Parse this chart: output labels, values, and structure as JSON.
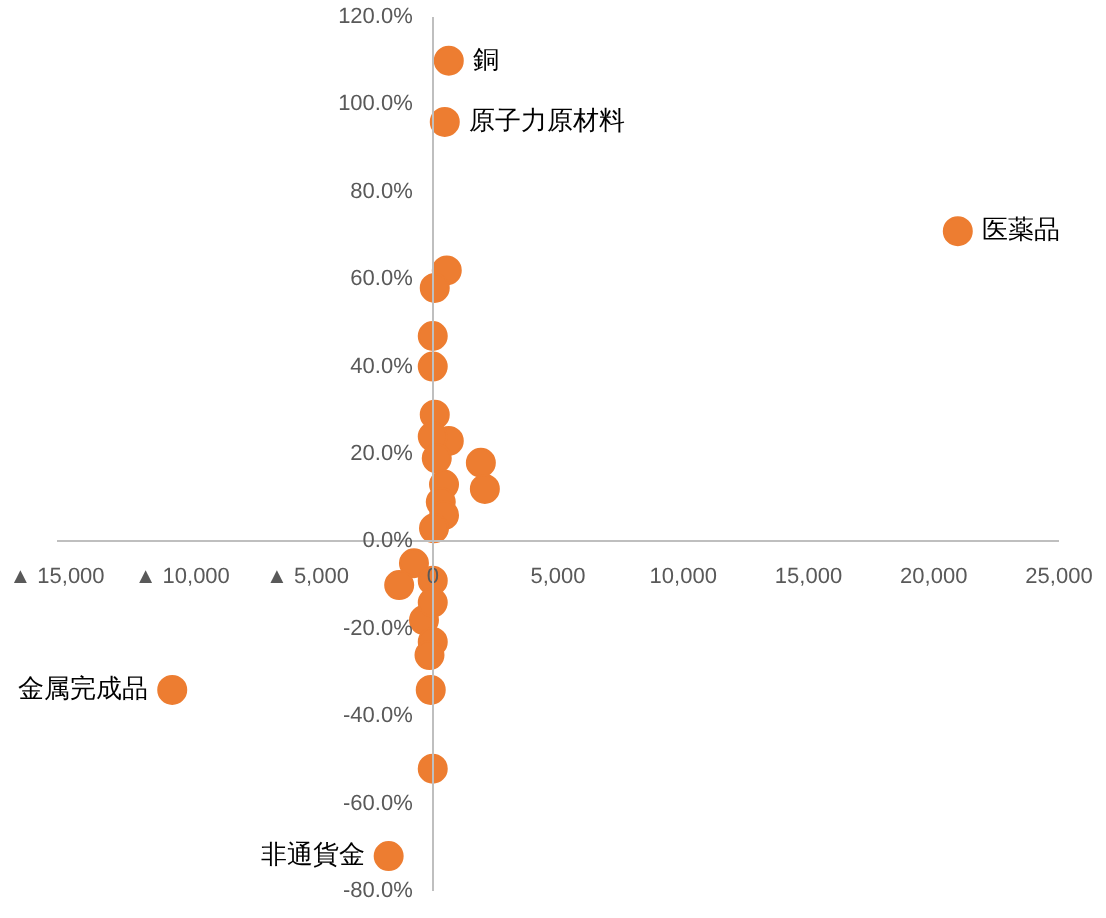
{
  "chart_data": {
    "type": "scatter",
    "color": "#ed7d31",
    "marker": "circle",
    "grid": false,
    "x": [
      640,
      480,
      20960,
      -10400,
      -1760,
      560,
      80,
      0,
      0,
      80,
      640,
      1920,
      2080,
      0,
      160,
      450,
      320,
      450,
      50,
      -750,
      -1340,
      -350,
      0,
      -130,
      -80,
      0,
      0,
      0
    ],
    "values": [
      110,
      96,
      71,
      -34,
      -72,
      62,
      58,
      47,
      40,
      29,
      23,
      18,
      12,
      24,
      19,
      13,
      9,
      6,
      3,
      -5,
      -10,
      -18,
      -23,
      -26,
      -34,
      -52,
      -9,
      -14
    ],
    "xlim": [
      -15000,
      25000
    ],
    "xticks": [
      {
        "value": -15000,
        "label": "▲ 15,000"
      },
      {
        "value": -10000,
        "label": "▲ 10,000"
      },
      {
        "value": -5000,
        "label": "▲ 5,000"
      },
      0,
      {
        "value": 5000,
        "label": "5,000"
      },
      {
        "value": 10000,
        "label": "10,000"
      },
      {
        "value": 15000,
        "label": "15,000"
      },
      {
        "value": 20000,
        "label": "20,000"
      },
      {
        "value": 25000,
        "label": "25,000"
      }
    ],
    "ylim": [
      -80,
      120
    ],
    "yticks": [
      {
        "value": -80,
        "label": "-80.0%"
      },
      {
        "value": -60,
        "label": "-60.0%"
      },
      {
        "value": -40,
        "label": "-40.0%"
      },
      {
        "value": -20,
        "label": "-20.0%"
      },
      {
        "value": 0,
        "label": "0.0%"
      },
      {
        "value": 20,
        "label": "20.0%"
      },
      {
        "value": 40,
        "label": "40.0%"
      },
      {
        "value": 60,
        "label": "60.0%"
      },
      {
        "value": 80,
        "label": "80.0%"
      },
      {
        "value": 100,
        "label": "100.0%"
      },
      {
        "value": 120,
        "label": "120.0%"
      }
    ],
    "annotations": [
      {
        "text": "銅",
        "x": 640,
        "y": 110
      },
      {
        "text": "原子力原材料",
        "x": 480,
        "y": 96
      },
      {
        "text": "医薬品",
        "x": 20960,
        "y": 71
      },
      {
        "text": "金属完成品",
        "x": -10400,
        "y": -34
      },
      {
        "text": "非通貨金",
        "x": -1760,
        "y": -72
      }
    ]
  }
}
